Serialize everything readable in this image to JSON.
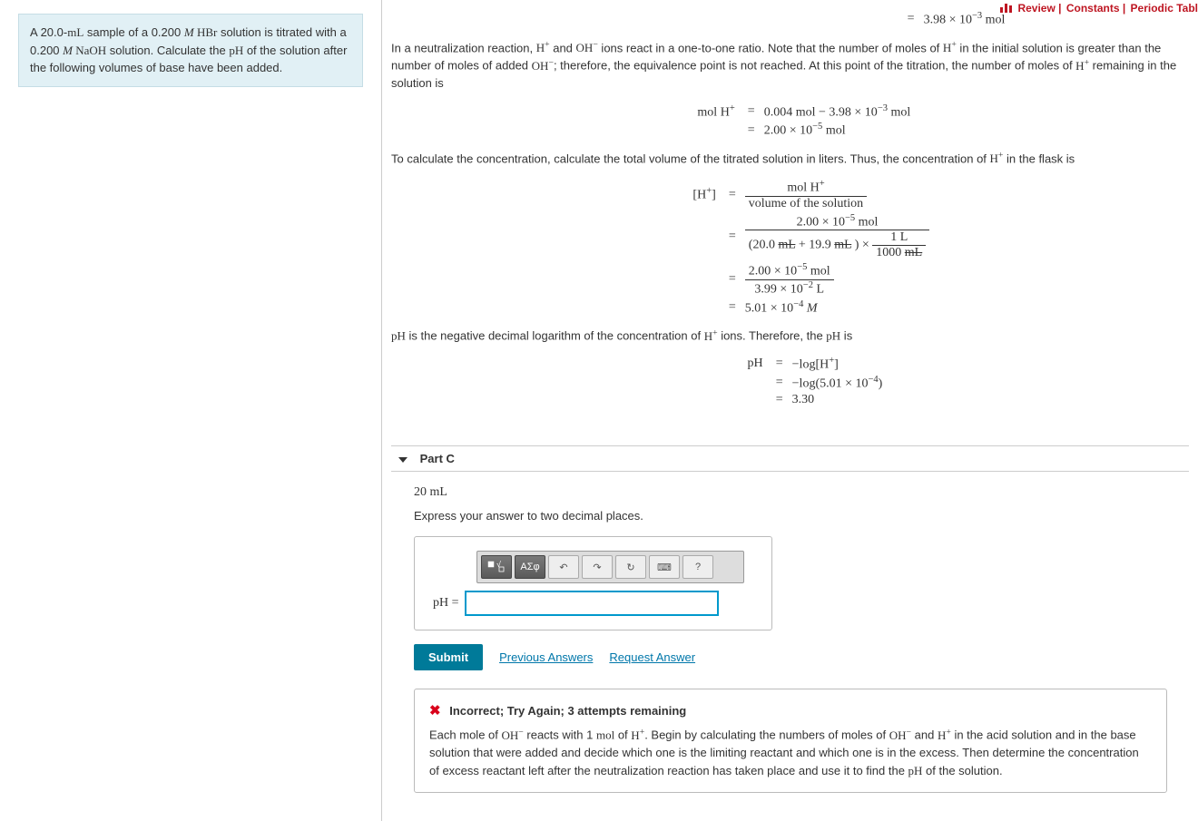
{
  "top_links": {
    "review": "Review",
    "constants": "Constants",
    "periodic": "Periodic Tabl"
  },
  "problem": {
    "html": "A 20.0-<span class='serif'>mL</span> sample of a 0.200 <span class='serif'><i>M</i> HBr</span> solution is titrated with a 0.200 <span class='serif'><i>M</i> NaOH</span> solution. Calculate the <span class='serif'>pH</span> of the solution after the following volumes of base have been added."
  },
  "eq1": {
    "r1_right": "3.98 × 10<sup>−3</sup> mol"
  },
  "para1": "In a neutralization reaction, <span class='serif'>H<sup>+</sup></span> and <span class='serif'>OH<sup>−</sup></span> ions react in a one-to-one ratio. Note that the number of moles of <span class='serif'>H<sup>+</sup></span> in the initial solution is greater than the number of moles of added <span class='serif'>OH<sup>−</sup></span>; therefore, the equivalence point is not reached. At this point of the titration, the number of moles of <span class='serif'>H<sup>+</sup></span> remaining in the solution is",
  "eq2": {
    "left": "mol H<sup>+</sup>",
    "r1": "0.004 mol − 3.98 × 10<sup>−3</sup> mol",
    "r2": "2.00 × 10<sup>−5</sup> mol"
  },
  "para2": "To calculate the concentration, calculate the total volume of the titrated solution in liters. Thus, the concentration of <span class='serif'>H<sup>+</sup></span> in the flask is",
  "eq3": {
    "left": "[H<sup>+</sup>]",
    "r1_num": "mol H<sup>+</sup>",
    "r1_den": "volume of the solution",
    "r2_num": "2.00 × 10<sup>−5</sup> mol",
    "r2_den_a": "(20.0 <span class='strike-mL'>mL</span> + 19.9 <span class='strike-mL'>mL</span> ) ×",
    "r2_den_b_num": "1 L",
    "r2_den_b_den": "1000 <span class='strike-mL'>mL</span>",
    "r3_num": "2.00 × 10<sup>−5</sup> mol",
    "r3_den": "3.99 × 10<sup>−2</sup> L",
    "r4": "5.01 × 10<sup>−4</sup> <i>M</i>"
  },
  "para3": "<span class='serif'>pH</span> is the negative decimal logarithm of the concentration of <span class='serif'>H<sup>+</sup></span> ions. Therefore, the <span class='serif'>pH</span> is",
  "eq4": {
    "left": "pH",
    "r1": "−log[H<sup>+</sup>]",
    "r2": "−log(5.01 × 10<sup>−4</sup>)",
    "r3": "3.30"
  },
  "partC": {
    "title": "Part C",
    "vol": "20 mL",
    "instr": "Express your answer to two decimal places.",
    "label": "pH =",
    "submit": "Submit",
    "prev": "Previous Answers",
    "request": "Request Answer"
  },
  "toolbar": {
    "b2": "ΑΣφ",
    "b3": "↶",
    "b4": "↷",
    "b5": "↻",
    "b6": "⌨",
    "b7": "?"
  },
  "feedback": {
    "title": "Incorrect; Try Again; 3 attempts remaining",
    "text": "Each mole of <span class='serif'>OH<sup>−</sup></span> reacts with 1 <span class='serif'>mol</span> of <span class='serif'>H<sup>+</sup></span>. Begin by calculating the numbers of moles of <span class='serif'>OH<sup>−</sup></span> and <span class='serif'>H<sup>+</sup></span> in the acid solution and in the base solution that were added and decide which one is the limiting reactant and which one is in the excess. Then determine the concentration of excess reactant left after the neutralization reaction has taken place and use it to find the <span class='serif'>pH</span> of the solution."
  }
}
